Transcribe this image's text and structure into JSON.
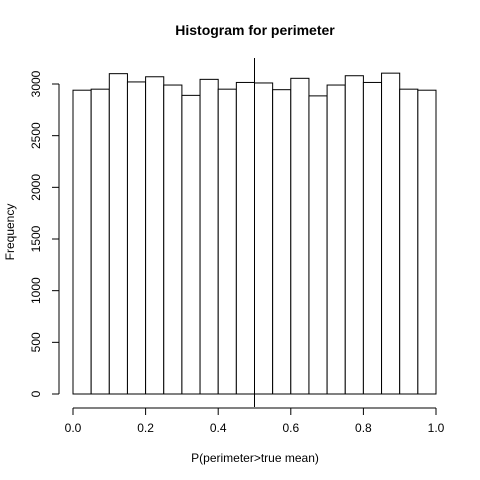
{
  "chart_data": {
    "type": "bar",
    "title": "Histogram for perimeter",
    "xlabel": "P(perimeter>true mean)",
    "ylabel": "Frequency",
    "xlim": [
      0,
      1
    ],
    "ylim": [
      0,
      3150
    ],
    "bin_width": 0.05,
    "bin_edges": [
      0.0,
      0.05,
      0.1,
      0.15,
      0.2,
      0.25,
      0.3,
      0.35,
      0.4,
      0.45,
      0.5,
      0.55,
      0.6,
      0.65,
      0.7,
      0.75,
      0.8,
      0.85,
      0.9,
      0.95,
      1.0
    ],
    "values": [
      2940,
      2950,
      3100,
      3020,
      3070,
      2990,
      2890,
      3045,
      2950,
      3015,
      3010,
      2945,
      3055,
      2885,
      2990,
      3080,
      3015,
      3105,
      2950,
      2940
    ],
    "xticks": [
      "0.0",
      "0.2",
      "0.4",
      "0.6",
      "0.8",
      "1.0"
    ],
    "xtick_values": [
      0.0,
      0.2,
      0.4,
      0.6,
      0.8,
      1.0
    ],
    "yticks": [
      "0",
      "500",
      "1000",
      "1500",
      "2000",
      "2500",
      "3000"
    ],
    "ytick_values": [
      0,
      500,
      1000,
      1500,
      2000,
      2500,
      3000
    ],
    "reference_line_x": 0.5,
    "grid": false,
    "legend": "none",
    "bar_fill": "#ffffff",
    "bar_stroke": "#000000"
  }
}
